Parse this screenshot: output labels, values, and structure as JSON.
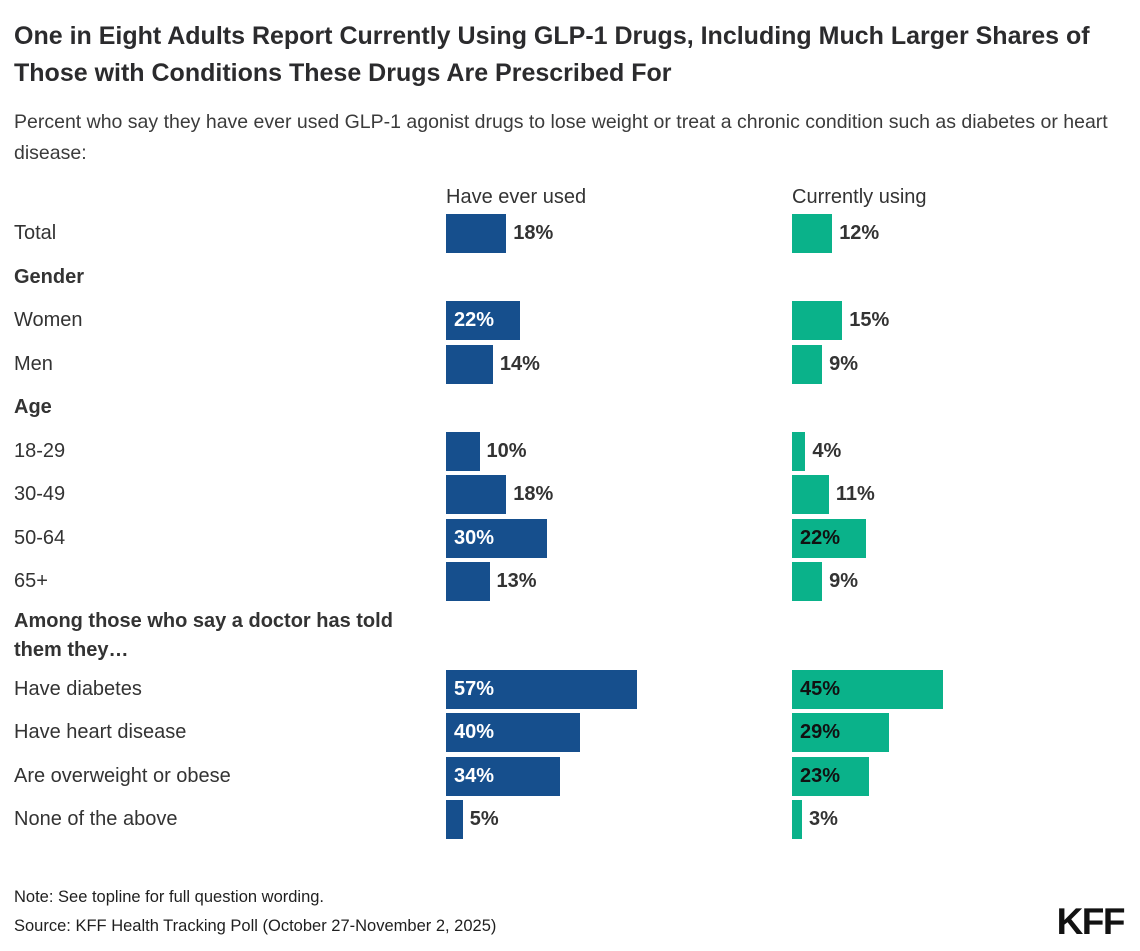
{
  "header": {
    "title": "One in Eight Adults Report Currently Using GLP-1 Drugs, Including Much Larger Shares of Those with Conditions These Drugs Are Prescribed For",
    "subtitle": "Percent who say they have ever used GLP-1 agonist drugs to lose weight or treat a chronic condition such as diabetes or heart disease:"
  },
  "chart_data": {
    "type": "bar",
    "orientation": "horizontal",
    "unit": "%",
    "xlim": [
      0,
      100
    ],
    "series_headers": [
      "Have ever used",
      "Currently using"
    ],
    "colors": {
      "have_ever_used": "#164f8d",
      "currently_using": "#0ab28a"
    },
    "rows": [
      {
        "kind": "bar",
        "label": "Total",
        "have_ever_used": 18,
        "currently_using": 12
      },
      {
        "kind": "section",
        "label": "Gender"
      },
      {
        "kind": "bar",
        "label": "Women",
        "have_ever_used": 22,
        "currently_using": 15
      },
      {
        "kind": "bar",
        "label": "Men",
        "have_ever_used": 14,
        "currently_using": 9
      },
      {
        "kind": "section",
        "label": "Age"
      },
      {
        "kind": "bar",
        "label": "18-29",
        "have_ever_used": 10,
        "currently_using": 4
      },
      {
        "kind": "bar",
        "label": "30-49",
        "have_ever_used": 18,
        "currently_using": 11
      },
      {
        "kind": "bar",
        "label": "50-64",
        "have_ever_used": 30,
        "currently_using": 22
      },
      {
        "kind": "bar",
        "label": "65+",
        "have_ever_used": 13,
        "currently_using": 9
      },
      {
        "kind": "section",
        "label": "Among those who say a doctor has told them they…"
      },
      {
        "kind": "bar",
        "label": "Have diabetes",
        "have_ever_used": 57,
        "currently_using": 45
      },
      {
        "kind": "bar",
        "label": "Have heart disease",
        "have_ever_used": 40,
        "currently_using": 29
      },
      {
        "kind": "bar",
        "label": "Are overweight or obese",
        "have_ever_used": 34,
        "currently_using": 23
      },
      {
        "kind": "bar",
        "label": "None of the above",
        "have_ever_used": 5,
        "currently_using": 3
      }
    ]
  },
  "footer": {
    "note": "Note: See topline for full question wording.",
    "source": "Source: KFF Health Tracking Poll (October 27-November 2, 2025)",
    "logo": "KFF"
  }
}
